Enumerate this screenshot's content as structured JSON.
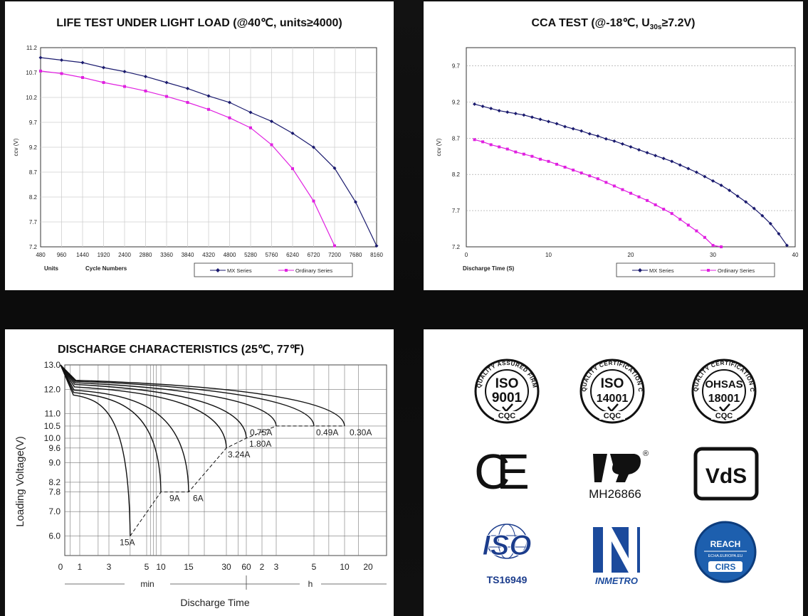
{
  "chart_data": [
    {
      "type": "line",
      "title": "LIFE TEST UNDER LIGHT LOAD (@40℃, units≥4000)",
      "ylabel": "ccv (V)",
      "xlabel": "Cycle Numbers",
      "xunits_label": "Units",
      "x": [
        480,
        960,
        1440,
        1920,
        2400,
        2880,
        3360,
        3840,
        4320,
        4800,
        5280,
        5760,
        6240,
        6720,
        7200,
        7680,
        8160
      ],
      "xticks": [
        "480",
        "960",
        "1440",
        "1920",
        "2400",
        "2880",
        "3360",
        "3840",
        "4320",
        "4800",
        "5280",
        "5760",
        "6240",
        "6720",
        "7200",
        "7680",
        "8160"
      ],
      "yticks": [
        "11.2",
        "10.7",
        "10.2",
        "9.7",
        "9.2",
        "8.7",
        "8.2",
        "7.7",
        "7.2"
      ],
      "ylim": [
        7.2,
        11.2
      ],
      "grid": true,
      "legend": "bottom-right",
      "series": [
        {
          "name": "MX Series",
          "color": "#1a1a6e",
          "values": [
            11.0,
            10.95,
            10.9,
            10.8,
            10.72,
            10.62,
            10.5,
            10.38,
            10.23,
            10.1,
            9.9,
            9.72,
            9.48,
            9.2,
            8.78,
            8.1,
            7.22
          ]
        },
        {
          "name": "Ordinary Series",
          "color": "#e020e0",
          "values": [
            10.73,
            10.68,
            10.6,
            10.5,
            10.42,
            10.33,
            10.22,
            10.1,
            9.96,
            9.79,
            9.59,
            9.25,
            8.77,
            8.12,
            7.22,
            null,
            null
          ]
        }
      ]
    },
    {
      "type": "line",
      "title": "CCA TEST (@-18℃, U30s≥7.2V)",
      "title_parts": {
        "pre": "CCA TEST (@-18℃, U",
        "sub": "30s",
        "post": "≥7.2V)"
      },
      "ylabel": "ccv (V)",
      "xlabel": "Discharge Time (S)",
      "xticks": [
        "0",
        "10",
        "20",
        "30",
        "40"
      ],
      "yticks": [
        "9.7",
        "9.2",
        "8.7",
        "8.2",
        "7.7",
        "7.2"
      ],
      "xlim": [
        0,
        40
      ],
      "ylim": [
        7.2,
        9.95
      ],
      "grid": true,
      "legend": "bottom-right",
      "series": [
        {
          "name": "MX Series",
          "color": "#1a1a6e",
          "x": [
            1,
            2,
            3,
            4,
            5,
            6,
            7,
            8,
            9,
            10,
            11,
            12,
            13,
            14,
            15,
            16,
            17,
            18,
            19,
            20,
            21,
            22,
            23,
            24,
            25,
            26,
            27,
            28,
            29,
            30,
            31,
            32,
            33,
            34,
            35,
            36,
            37,
            38,
            39
          ],
          "values": [
            9.17,
            9.14,
            9.11,
            9.08,
            9.06,
            9.04,
            9.02,
            8.99,
            8.96,
            8.93,
            8.9,
            8.86,
            8.83,
            8.8,
            8.76,
            8.73,
            8.69,
            8.66,
            8.62,
            8.58,
            8.54,
            8.5,
            8.46,
            8.42,
            8.38,
            8.33,
            8.28,
            8.23,
            8.17,
            8.11,
            8.05,
            7.98,
            7.9,
            7.82,
            7.73,
            7.63,
            7.52,
            7.38,
            7.22
          ]
        },
        {
          "name": "Ordinary Series",
          "color": "#e020e0",
          "x": [
            1,
            2,
            3,
            4,
            5,
            6,
            7,
            8,
            9,
            10,
            11,
            12,
            13,
            14,
            15,
            16,
            17,
            18,
            19,
            20,
            21,
            22,
            23,
            24,
            25,
            26,
            27,
            28,
            29,
            30,
            31
          ],
          "values": [
            8.68,
            8.65,
            8.61,
            8.58,
            8.55,
            8.51,
            8.48,
            8.45,
            8.41,
            8.38,
            8.34,
            8.3,
            8.26,
            8.22,
            8.18,
            8.14,
            8.09,
            8.04,
            7.99,
            7.94,
            7.89,
            7.84,
            7.78,
            7.72,
            7.66,
            7.58,
            7.5,
            7.42,
            7.33,
            7.22,
            7.2
          ]
        }
      ]
    },
    {
      "type": "line",
      "title": "DISCHARGE CHARACTERISTICS (25℃, 77℉)",
      "ylabel": "Loading  Voltage(V)",
      "xlabel": "Discharge Time",
      "yticks": [
        "13.0",
        "12.0",
        "11.0",
        "10.5",
        "10.0",
        "9.6",
        "9.0",
        "8.2",
        "7.8",
        "7.0",
        "6.0"
      ],
      "ytick_values": [
        13.0,
        12.0,
        11.0,
        10.5,
        10.0,
        9.6,
        9.0,
        8.2,
        7.8,
        7.0,
        6.0
      ],
      "ylim": [
        5.2,
        13.0
      ],
      "xticks": [
        "0",
        "1",
        "3",
        "5",
        "10",
        "15",
        "30",
        "60",
        "2",
        "3",
        "5",
        "10",
        "20"
      ],
      "unit_labels": {
        "min": "min",
        "h": "h"
      },
      "grid": true,
      "series": [
        {
          "name": "15A",
          "end_minutes": 4,
          "final_voltage": 6.0
        },
        {
          "name": "9A",
          "end_minutes": 10,
          "final_voltage": 7.8
        },
        {
          "name": "6A",
          "end_minutes": 15,
          "final_voltage": 7.8
        },
        {
          "name": "3.24A",
          "end_minutes": 30,
          "final_voltage": 9.6
        },
        {
          "name": "1.80A",
          "end_minutes": 60,
          "final_voltage": 10.0
        },
        {
          "name": "0.75A",
          "end_minutes": 180,
          "final_voltage": 10.5
        },
        {
          "name": "0.49A",
          "end_minutes": 300,
          "final_voltage": 10.5
        },
        {
          "name": "0.30A",
          "end_minutes": 600,
          "final_voltage": 10.5
        }
      ]
    }
  ],
  "certifications": [
    {
      "id": "iso9001",
      "icon": "iso-9001-seal-icon",
      "line1": "ISO",
      "line2": "9001",
      "ring": "QUALITY ASSURED FIRM",
      "foot": "CQC"
    },
    {
      "id": "iso14001",
      "icon": "iso-14001-seal-icon",
      "line1": "ISO",
      "line2": "14001",
      "ring": "CHINA QUALITY CERTIFICATION CENTRE",
      "foot": "CQC"
    },
    {
      "id": "ohsas18001",
      "icon": "ohsas-18001-seal-icon",
      "line1": "OHSAS",
      "line2": "18001",
      "ring": "CHINA QUALITY CERTIFICATION CENTRE",
      "foot": "CQC"
    },
    {
      "id": "ce",
      "icon": "ce-mark-icon",
      "text": "CE"
    },
    {
      "id": "ul",
      "icon": "ul-recognized-icon",
      "text": "MH26866",
      "reg": "®"
    },
    {
      "id": "vds",
      "icon": "vds-logo-icon",
      "text": "VdS"
    },
    {
      "id": "ts16949",
      "icon": "iso-globe-icon",
      "logo": "ISO",
      "text": "TS16949"
    },
    {
      "id": "inmetro",
      "icon": "inmetro-logo-icon",
      "text": "INMETRO"
    },
    {
      "id": "reach",
      "icon": "reach-cirs-icon",
      "line1": "REACH",
      "line2": "ECHA.EUROPA.EU",
      "line3": "CIRS"
    }
  ]
}
